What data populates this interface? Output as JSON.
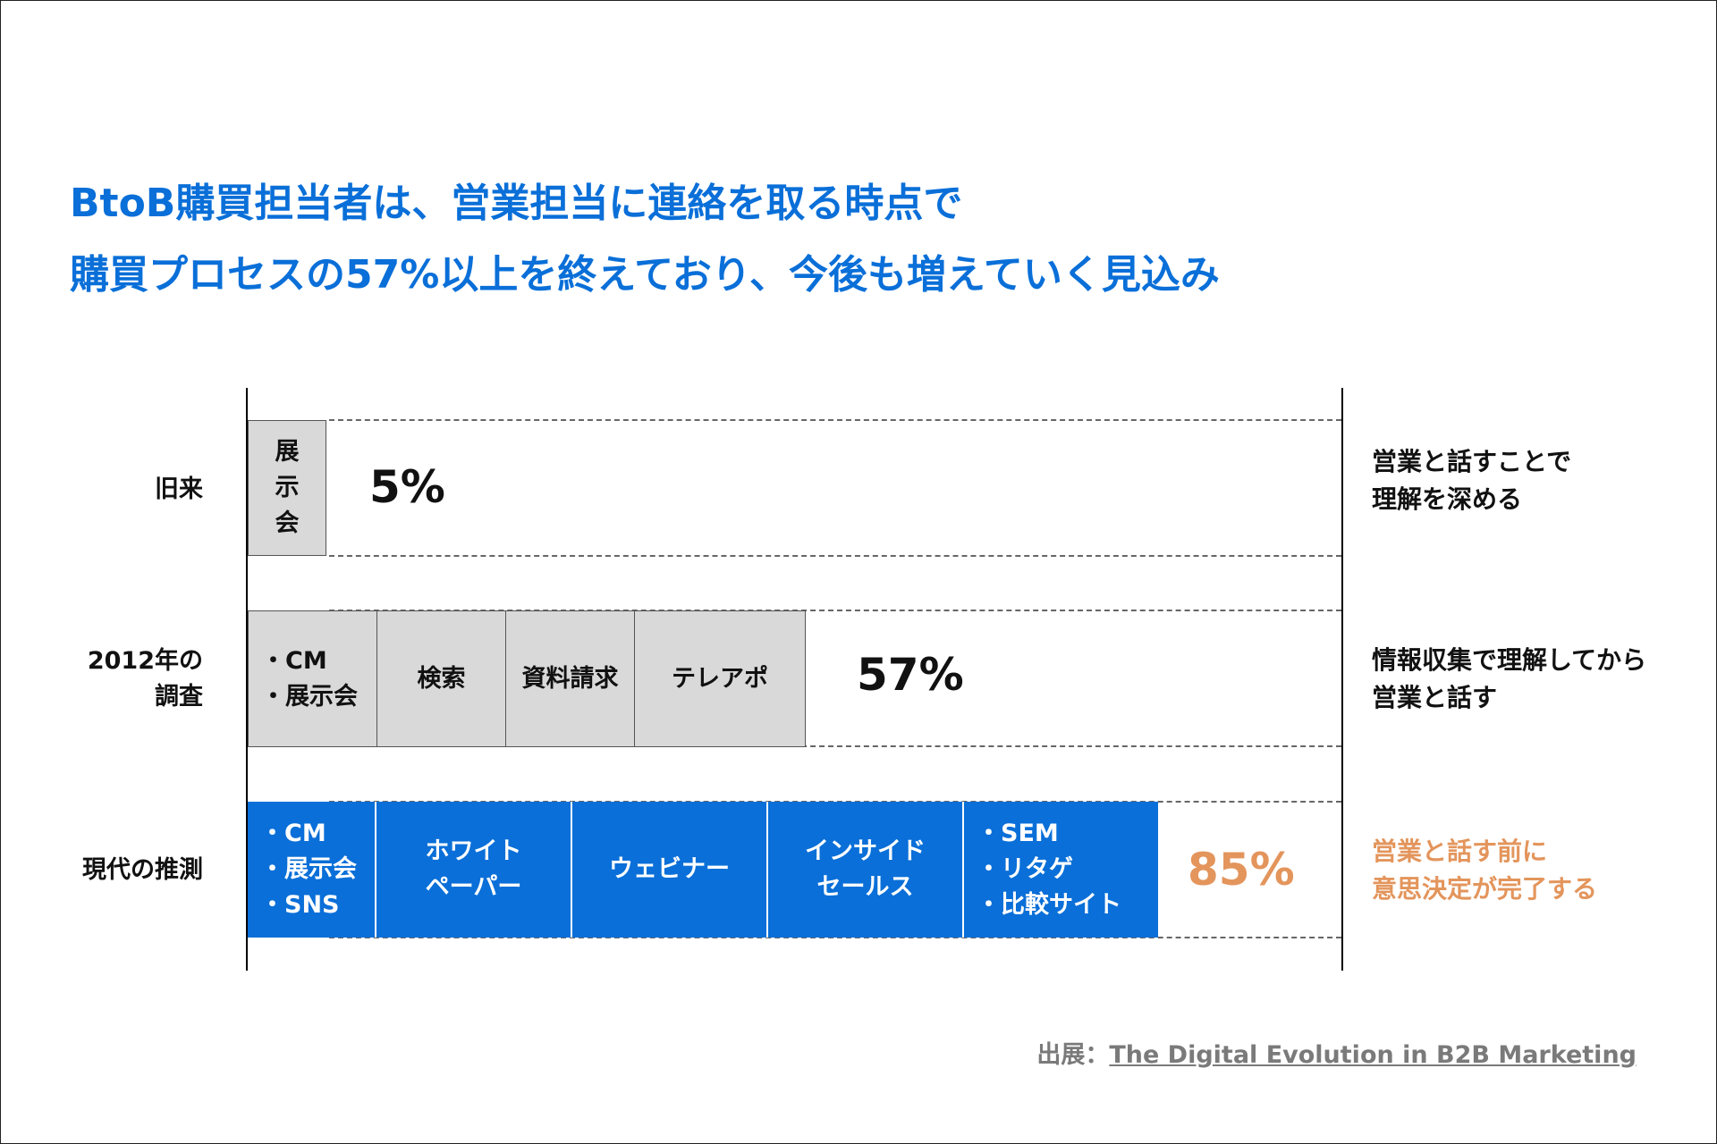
{
  "title": {
    "line1": "BtoB購買担当者は、営業担当に連絡を取る時点で",
    "line2": "購買プロセスの57%以上を終えており、今後も増えていく見込み"
  },
  "colors": {
    "accent_blue": "#0a6fd8",
    "accent_orange": "#e3955c",
    "gray_segment": "#d9d9d9"
  },
  "chart_data": {
    "type": "bar",
    "orientation": "horizontal-stacked",
    "categories": [
      "旧来",
      "2012年の調査",
      "現代の推測"
    ],
    "values": [
      5,
      57,
      85
    ],
    "unit": "%",
    "rows": [
      {
        "label_lines": [
          "旧来"
        ],
        "percent": 5,
        "percent_label": "5%",
        "segments": [
          {
            "lines": [
              "展",
              "示",
              "会"
            ]
          }
        ],
        "note_lines": [
          "営業と話すことで",
          "理解を深める"
        ]
      },
      {
        "label_lines": [
          "2012年の",
          "調査"
        ],
        "percent": 57,
        "percent_label": "57%",
        "segments": [
          {
            "lines": [
              "・CM",
              "・展示会"
            ]
          },
          {
            "lines": [
              "検索"
            ]
          },
          {
            "lines": [
              "資料請求"
            ]
          },
          {
            "lines": [
              "テレアポ"
            ]
          }
        ],
        "note_lines": [
          "情報収集で理解してから",
          "営業と話す"
        ]
      },
      {
        "label_lines": [
          "現代の推測"
        ],
        "percent": 85,
        "percent_label": "85%",
        "segments": [
          {
            "lines": [
              "・CM",
              "・展示会",
              "・SNS"
            ]
          },
          {
            "lines": [
              "ホワイト",
              "ペーパー"
            ]
          },
          {
            "lines": [
              "ウェビナー"
            ]
          },
          {
            "lines": [
              "インサイド",
              "セールス"
            ]
          },
          {
            "lines": [
              "・SEM",
              "・リタゲ",
              "・比較サイト"
            ]
          }
        ],
        "note_lines": [
          "営業と話す前に",
          "意思決定が完了する"
        ]
      }
    ]
  },
  "source": {
    "prefix": "出展：",
    "link_text": "The Digital Evolution in B2B Marketing"
  }
}
